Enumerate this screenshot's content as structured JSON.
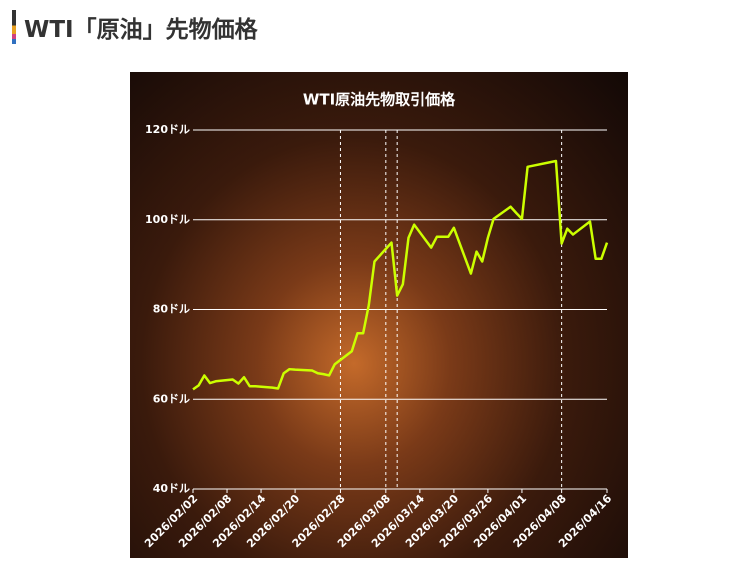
{
  "header": {
    "title": "WTI「原油」先物価格"
  },
  "chart_data": {
    "type": "line",
    "title": "WTI原油先物取引価格",
    "x": [
      "2026/02/02",
      "2026/02/03",
      "2026/02/04",
      "2026/02/05",
      "2026/02/06",
      "2026/02/09",
      "2026/02/10",
      "2026/02/11",
      "2026/02/12",
      "2026/02/13",
      "2026/02/16",
      "2026/02/17",
      "2026/02/18",
      "2026/02/19",
      "2026/02/20",
      "2026/02/23",
      "2026/02/24",
      "2026/02/25",
      "2026/02/26",
      "2026/02/27",
      "2026/03/02",
      "2026/03/03",
      "2026/03/04",
      "2026/03/05",
      "2026/03/06",
      "2026/03/09",
      "2026/03/10",
      "2026/03/11",
      "2026/03/12",
      "2026/03/13",
      "2026/03/16",
      "2026/03/17",
      "2026/03/18",
      "2026/03/19",
      "2026/03/20",
      "2026/03/23",
      "2026/03/24",
      "2026/03/25",
      "2026/03/26",
      "2026/03/27",
      "2026/03/30",
      "2026/03/31",
      "2026/04/01",
      "2026/04/02",
      "2026/04/07",
      "2026/04/08",
      "2026/04/09",
      "2026/04/10",
      "2026/04/13",
      "2026/04/14",
      "2026/04/15",
      "2026/04/16"
    ],
    "series": [
      {
        "name": "WTI",
        "color": "#ccff00",
        "values": [
          62.2,
          63.1,
          65.3,
          63.6,
          64.0,
          64.4,
          63.5,
          64.9,
          62.9,
          62.9,
          62.6,
          62.4,
          65.8,
          66.7,
          66.6,
          66.4,
          65.8,
          65.6,
          65.3,
          67.8,
          70.7,
          74.7,
          74.7,
          81.0,
          90.7,
          94.9,
          83.1,
          85.6,
          96.0,
          98.9,
          93.8,
          96.2,
          96.2,
          96.2,
          98.2,
          88.0,
          92.9,
          90.7,
          96.0,
          100.2,
          102.9,
          101.5,
          100.2,
          111.8,
          113.1,
          94.7,
          98.0,
          96.7,
          99.6,
          91.3,
          91.3,
          94.9
        ]
      }
    ],
    "xlim": [
      "2026/02/02",
      "2026/04/16"
    ],
    "xticks": [
      "2026/02/02",
      "2026/02/08",
      "2026/02/14",
      "2026/02/20",
      "2026/02/28",
      "2026/03/08",
      "2026/03/14",
      "2026/03/20",
      "2026/03/26",
      "2026/04/01",
      "2026/04/08",
      "2026/04/16"
    ],
    "ylim": [
      40,
      120
    ],
    "yticks": [
      {
        "value": 40,
        "label": "40ドル"
      },
      {
        "value": 60,
        "label": "60ドル"
      },
      {
        "value": 80,
        "label": "80ドル"
      },
      {
        "value": 100,
        "label": "100ドル"
      },
      {
        "value": 120,
        "label": "120ドル"
      }
    ],
    "grid": true,
    "vlines": [
      "2026/02/28",
      "2026/03/08",
      "2026/03/10",
      "2026/04/08"
    ]
  }
}
